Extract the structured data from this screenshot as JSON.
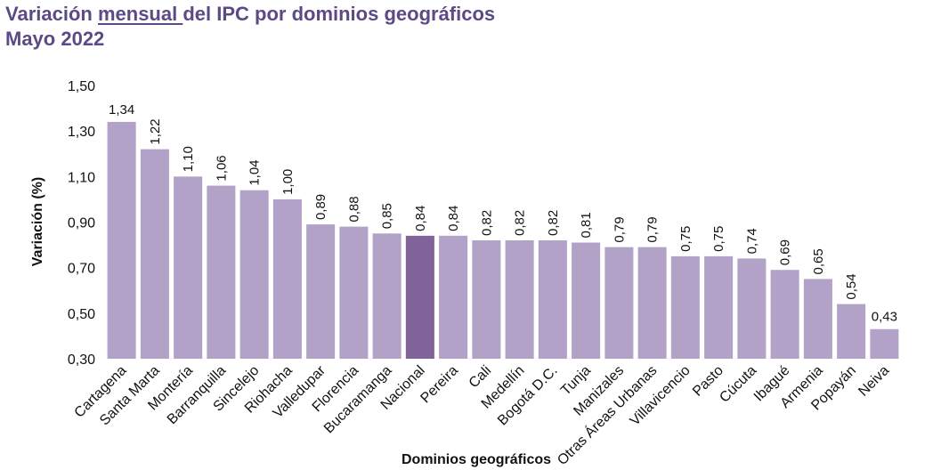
{
  "title": {
    "pre": "Variación ",
    "emph": "mensual ",
    "post": "del IPC por dominios geográficos",
    "line2": "Mayo 2022"
  },
  "chart_data": {
    "type": "bar",
    "xlabel": "Dominios geográficos",
    "ylabel": "Variación (%)",
    "ylim": [
      0.3,
      1.5
    ],
    "yticks": [
      "0,30",
      "0,50",
      "0,70",
      "0,90",
      "1,10",
      "1,30",
      "1,50"
    ],
    "ytick_values": [
      0.3,
      0.5,
      0.7,
      0.9,
      1.1,
      1.3,
      1.5
    ],
    "categories": [
      "Cartagena",
      "Santa Marta",
      "Montería",
      "Barranquilla",
      "Sincelejo",
      "Riohacha",
      "Valledupar",
      "Florencia",
      "Bucaramanga",
      "Nacional",
      "Pereira",
      "Cali",
      "Medellín",
      "Bogotá D.C.",
      "Tunja",
      "Manizales",
      "Otras Áreas Urbanas",
      "Villavicencio",
      "Pasto",
      "Cúcuta",
      "Ibagué",
      "Armenia",
      "Popayán",
      "Neiva"
    ],
    "values": [
      1.34,
      1.22,
      1.1,
      1.06,
      1.04,
      1.0,
      0.89,
      0.88,
      0.85,
      0.84,
      0.84,
      0.82,
      0.82,
      0.82,
      0.81,
      0.79,
      0.79,
      0.75,
      0.75,
      0.74,
      0.69,
      0.65,
      0.54,
      0.43
    ],
    "value_labels": [
      "1,34",
      "1,22",
      "1,10",
      "1,06",
      "1,04",
      "1,00",
      "0,89",
      "0,88",
      "0,85",
      "0,84",
      "0,84",
      "0,82",
      "0,82",
      "0,82",
      "0,81",
      "0,79",
      "0,79",
      "0,75",
      "0,75",
      "0,74",
      "0,69",
      "0,65",
      "0,54",
      "0,43"
    ],
    "highlight": "Nacional",
    "colors": {
      "bar": "#b3a2c8",
      "highlight": "#7f6399"
    },
    "grid": false,
    "legend": "none"
  }
}
